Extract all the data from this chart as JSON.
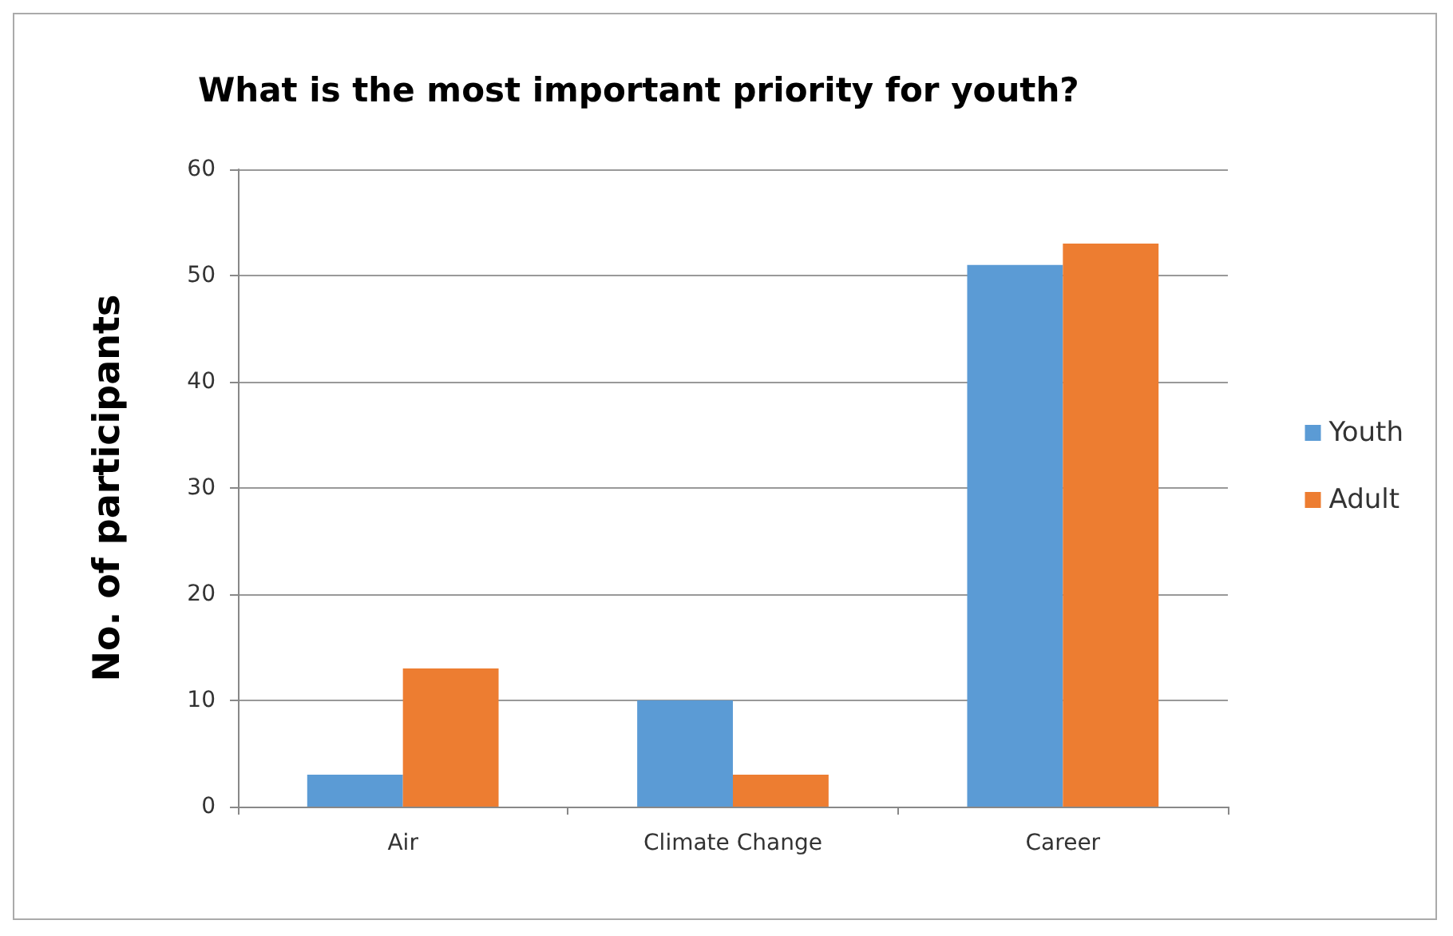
{
  "chart_data": {
    "type": "bar",
    "title": "What is the most important priority for youth?",
    "ylabel": "No. of participants",
    "categories": [
      "Air",
      "Climate Change",
      "Career"
    ],
    "series": [
      {
        "name": "Youth",
        "color": "#5b9bd5",
        "values": [
          3,
          10,
          51
        ]
      },
      {
        "name": "Adult",
        "color": "#ed7d31",
        "values": [
          13,
          3,
          53
        ]
      }
    ],
    "ylim": [
      0,
      60
    ],
    "yticks": [
      0,
      10,
      20,
      30,
      40,
      50,
      60
    ],
    "grid": "y",
    "legend": "right"
  }
}
